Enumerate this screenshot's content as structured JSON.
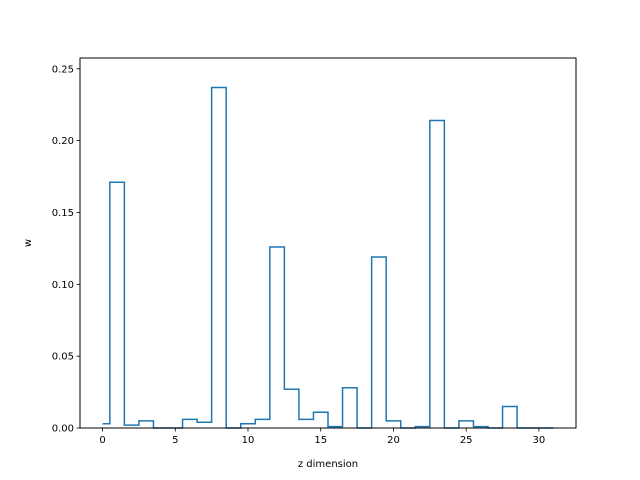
{
  "chart_data": {
    "type": "line",
    "style": "steps-mid",
    "title": "",
    "xlabel": "z dimension",
    "ylabel": "w",
    "xlim": [
      -1.55,
      32.55
    ],
    "ylim": [
      0,
      0.2575
    ],
    "xticks": [
      0,
      5,
      10,
      15,
      20,
      25,
      30
    ],
    "yticks": [
      0.0,
      0.05,
      0.1,
      0.15,
      0.2,
      0.25
    ],
    "ytick_labels": [
      "0.00",
      "0.05",
      "0.10",
      "0.15",
      "0.20",
      "0.25"
    ],
    "grid": false,
    "color": "#1f77b4",
    "x": [
      0,
      1,
      2,
      3,
      4,
      5,
      6,
      7,
      8,
      9,
      10,
      11,
      12,
      13,
      14,
      15,
      16,
      17,
      18,
      19,
      20,
      21,
      22,
      23,
      24,
      25,
      26,
      27,
      28,
      29,
      30,
      31
    ],
    "values": [
      0.003,
      0.171,
      0.002,
      0.005,
      0.0,
      0.0,
      0.006,
      0.004,
      0.237,
      0.0,
      0.003,
      0.006,
      0.126,
      0.027,
      0.006,
      0.011,
      0.001,
      0.028,
      0.0,
      0.119,
      0.005,
      0.0,
      0.001,
      0.214,
      0.0,
      0.005,
      0.001,
      0.0,
      0.015,
      0.0,
      0.0,
      0.0
    ]
  }
}
